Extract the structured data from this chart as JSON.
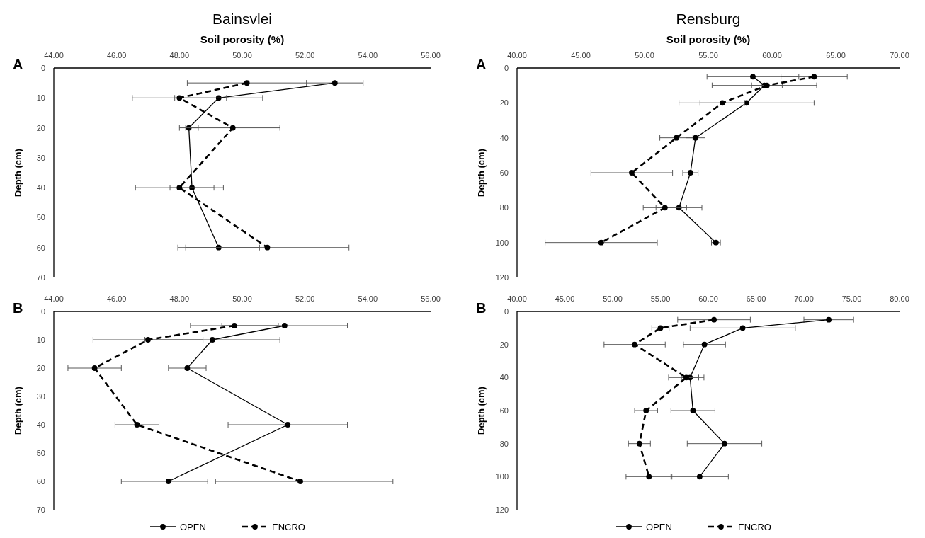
{
  "chart_data": [
    {
      "type": "line",
      "title": "Bainsvlei",
      "xlabel": "Soil porosity (%)",
      "ylabel": "Depth (cm)",
      "annotations": [
        "A"
      ],
      "xlim": [
        44,
        56
      ],
      "xticks": [
        {
          "value": 44,
          "label": "44.00"
        },
        {
          "value": 46,
          "label": "46.00"
        },
        {
          "value": 48,
          "label": "48.00"
        },
        {
          "value": 50,
          "label": "50.00"
        },
        {
          "value": 52,
          "label": "52.00"
        },
        {
          "value": 54,
          "label": "54.00"
        },
        {
          "value": 56,
          "label": "56.00"
        }
      ],
      "ylim": [
        70,
        0
      ],
      "yticks": [
        0,
        10,
        20,
        30,
        40,
        50,
        60,
        70
      ],
      "grid": false,
      "legend": false,
      "marker": "circle",
      "series": [
        {
          "color": "#000000",
          "line_style": "solid",
          "x": [
            52.95,
            49.25,
            48.3,
            48.4,
            49.25
          ],
          "values": [
            5,
            10,
            20,
            40,
            60
          ],
          "xerrors": [
            0.9,
            1.4,
            0.3,
            0.7,
            1.3
          ]
        },
        {
          "color": "#000000",
          "line_style": "dashed",
          "x": [
            50.15,
            48.0,
            49.7,
            48.0,
            50.8
          ],
          "values": [
            5,
            10,
            20,
            40,
            60
          ],
          "xerrors": [
            1.9,
            1.5,
            1.5,
            1.4,
            2.6
          ]
        }
      ]
    },
    {
      "type": "line",
      "title": "Rensburg",
      "xlabel": "Soil porosity (%)",
      "ylabel": "Depth (cm)",
      "annotations": [
        "A"
      ],
      "xlim": [
        40,
        70
      ],
      "xticks": [
        {
          "value": 40,
          "label": "40.00"
        },
        {
          "value": 45,
          "label": "45.00"
        },
        {
          "value": 50,
          "label": "50.00"
        },
        {
          "value": 55,
          "label": "55.00"
        },
        {
          "value": 60,
          "label": "60.00"
        },
        {
          "value": 65,
          "label": "65.00"
        },
        {
          "value": 70,
          "label": "70.00"
        }
      ],
      "ylim": [
        120,
        0
      ],
      "yticks": [
        0,
        20,
        40,
        60,
        80,
        100,
        120
      ],
      "grid": false,
      "legend": false,
      "marker": "circle",
      "series": [
        {
          "color": "#000000",
          "line_style": "solid",
          "x": [
            58.5,
            59.4,
            58.0,
            54.0,
            53.6,
            52.7,
            55.6
          ],
          "values": [
            5,
            10,
            20,
            40,
            60,
            80,
            100
          ],
          "xerrors": [
            3.6,
            4.1,
            5.3,
            0.75,
            0.6,
            1.8,
            0.35
          ]
        },
        {
          "color": "#000000",
          "line_style": "dashed",
          "x": [
            63.3,
            59.6,
            56.1,
            52.5,
            49.0,
            51.6,
            46.6
          ],
          "values": [
            5,
            10,
            20,
            40,
            60,
            80,
            100
          ],
          "xerrors": [
            2.6,
            1.2,
            1.75,
            1.3,
            3.2,
            1.7,
            4.4
          ]
        }
      ]
    },
    {
      "type": "line",
      "ylabel": "Depth (cm)",
      "annotations": [
        "B"
      ],
      "xlim": [
        44,
        56
      ],
      "xticks": [
        {
          "value": 44,
          "label": "44.00"
        },
        {
          "value": 46,
          "label": "46.00"
        },
        {
          "value": 48,
          "label": "48.00"
        },
        {
          "value": 50,
          "label": "50.00"
        },
        {
          "value": 52,
          "label": "52.00"
        },
        {
          "value": 54,
          "label": "54.00"
        },
        {
          "value": 56,
          "label": "56.00"
        }
      ],
      "ylim": [
        70,
        0
      ],
      "yticks": [
        0,
        10,
        20,
        30,
        40,
        50,
        60,
        70
      ],
      "grid": false,
      "legend": "bottom",
      "marker": "circle",
      "series": [
        {
          "name": "OPEN",
          "color": "#000000",
          "line_style": "solid",
          "x": [
            51.35,
            49.05,
            48.25,
            51.45,
            47.65
          ],
          "values": [
            5,
            10,
            20,
            40,
            60
          ],
          "xerrors": [
            2.0,
            2.15,
            0.6,
            1.9,
            [
              46.15,
              48.9
            ]
          ]
        },
        {
          "name": "ENCRO",
          "color": "#000000",
          "line_style": "dashed",
          "x": [
            49.75,
            47.0,
            45.3,
            46.65,
            51.85
          ],
          "values": [
            5,
            10,
            20,
            40,
            60
          ],
          "xerrors": [
            1.4,
            1.75,
            0.85,
            0.7,
            [
              49.15,
              54.8
            ]
          ]
        }
      ]
    },
    {
      "type": "line",
      "ylabel": "Depth (cm)",
      "annotations": [
        "B"
      ],
      "xlim": [
        40,
        80
      ],
      "xticks": [
        {
          "value": 40,
          "label": "40.00"
        },
        {
          "value": 45,
          "label": "45.00"
        },
        {
          "value": 50,
          "label": "50.00"
        },
        {
          "value": 55,
          "label": "55.00"
        },
        {
          "value": 60,
          "label": "60.00"
        },
        {
          "value": 65,
          "label": "65.00"
        },
        {
          "value": 70,
          "label": "70.00"
        },
        {
          "value": 75,
          "label": "75.00"
        },
        {
          "value": 80,
          "label": "80.00"
        }
      ],
      "ylim": [
        120,
        0
      ],
      "yticks": [
        0,
        20,
        40,
        60,
        80,
        100,
        120
      ],
      "grid": false,
      "legend": "bottom",
      "marker": "circle",
      "series": [
        {
          "name": "OPEN",
          "color": "#000000",
          "line_style": "solid",
          "x": [
            72.6,
            63.6,
            59.6,
            58.1,
            58.4,
            61.7,
            59.1
          ],
          "values": [
            5,
            10,
            20,
            40,
            60,
            80,
            100
          ],
          "xerrors": [
            2.6,
            5.5,
            2.2,
            0.9,
            2.3,
            3.9,
            3.0
          ]
        },
        {
          "name": "ENCRO",
          "color": "#000000",
          "line_style": "dashed",
          "x": [
            60.6,
            55.0,
            52.3,
            57.7,
            53.5,
            52.8,
            53.8
          ],
          "values": [
            5,
            10,
            20,
            40,
            60,
            80,
            100
          ],
          "xerrors": [
            3.8,
            0.9,
            3.2,
            1.85,
            1.2,
            1.15,
            2.4
          ]
        }
      ]
    }
  ]
}
